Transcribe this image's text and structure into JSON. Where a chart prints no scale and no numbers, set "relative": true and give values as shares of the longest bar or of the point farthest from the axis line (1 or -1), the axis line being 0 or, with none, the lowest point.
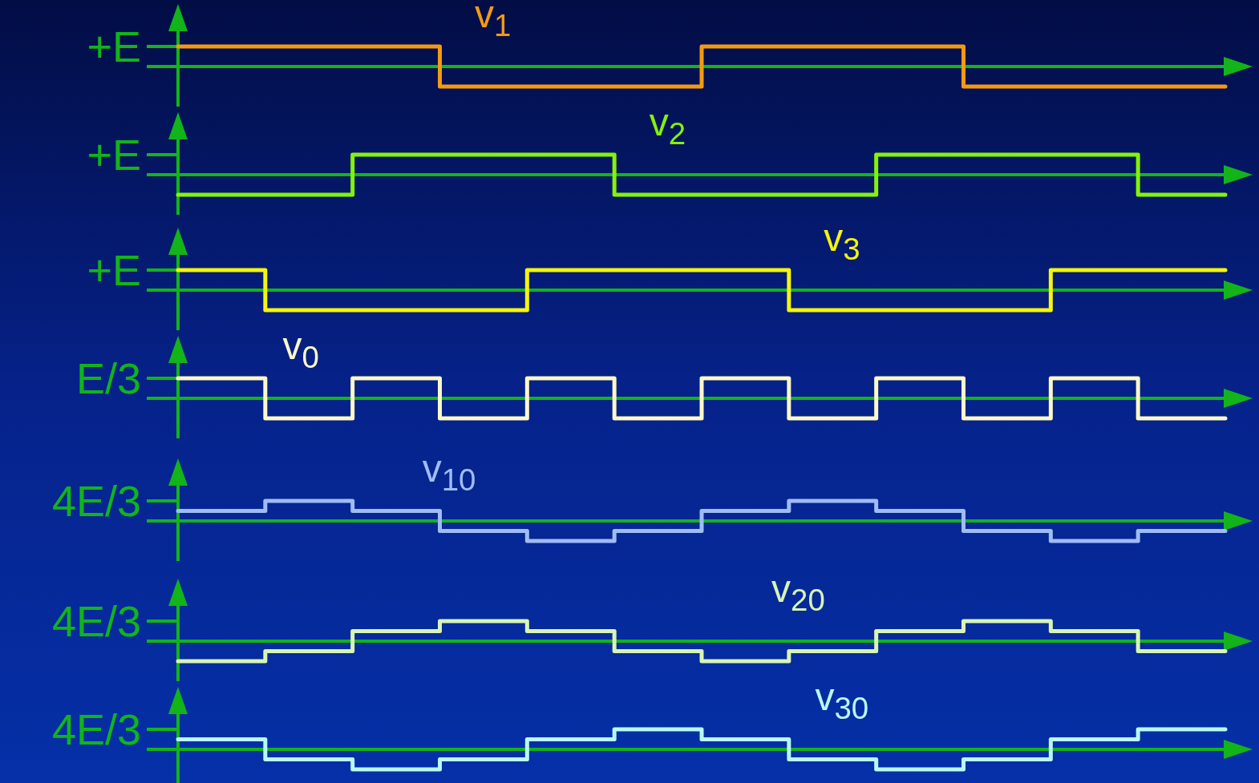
{
  "chart_data": [
    {
      "type": "step",
      "relative": true,
      "annotations": [
        "+E"
      ],
      "ref_lines": [
        {
          "axis": "y",
          "value": 0,
          "color": "#12b41a"
        }
      ],
      "categories": [
        null,
        null,
        null,
        null,
        null,
        null,
        null,
        null,
        null,
        null,
        null,
        null,
        null
      ],
      "series": [
        {
          "name": "v$_{1}$",
          "color": "#f39a12",
          "values": [
            1,
            1,
            1,
            -1,
            -1,
            -1,
            1,
            1,
            1,
            -1,
            -1,
            -1,
            -1
          ]
        }
      ]
    },
    {
      "type": "step",
      "relative": true,
      "annotations": [
        "+E"
      ],
      "ref_lines": [
        {
          "axis": "y",
          "value": 0,
          "color": "#12b41a"
        }
      ],
      "categories": [
        null,
        null,
        null,
        null,
        null,
        null,
        null,
        null,
        null,
        null,
        null,
        null,
        null
      ],
      "series": [
        {
          "name": "v$_{2}$",
          "color": "#84f20a",
          "values": [
            -1,
            -1,
            1,
            1,
            1,
            -1,
            -1,
            -1,
            1,
            1,
            1,
            -1,
            -1
          ]
        }
      ]
    },
    {
      "type": "step",
      "relative": true,
      "annotations": [
        "+E"
      ],
      "ref_lines": [
        {
          "axis": "y",
          "value": 0,
          "color": "#12b41a"
        }
      ],
      "categories": [
        null,
        null,
        null,
        null,
        null,
        null,
        null,
        null,
        null,
        null,
        null,
        null,
        null
      ],
      "series": [
        {
          "name": "v$_{3}$",
          "color": "#f5f50a",
          "values": [
            1,
            -1,
            -1,
            -1,
            1,
            1,
            1,
            -1,
            -1,
            -1,
            1,
            1,
            1
          ]
        }
      ]
    },
    {
      "type": "step",
      "relative": true,
      "annotations": [
        "E/3"
      ],
      "ref_lines": [
        {
          "axis": "y",
          "value": 0,
          "color": "#12b41a"
        }
      ],
      "categories": [
        null,
        null,
        null,
        null,
        null,
        null,
        null,
        null,
        null,
        null,
        null,
        null,
        null
      ],
      "series": [
        {
          "name": "v$_{0}$",
          "color": "#fcf8c8",
          "values": [
            1,
            -1,
            1,
            -1,
            1,
            -1,
            1,
            -1,
            1,
            -1,
            1,
            -1,
            -1
          ]
        }
      ]
    },
    {
      "type": "step",
      "relative": true,
      "annotations": [
        "4E/3"
      ],
      "ref_lines": [
        {
          "axis": "y",
          "value": 0,
          "color": "#12b41a"
        }
      ],
      "categories": [
        null,
        null,
        null,
        null,
        null,
        null,
        null,
        null,
        null,
        null,
        null,
        null,
        null
      ],
      "series": [
        {
          "name": "v$_{10}$",
          "color": "#a0bcf5",
          "values": [
            0.5,
            1,
            0.5,
            -0.5,
            -1,
            -0.5,
            0.5,
            1,
            0.5,
            -0.5,
            -1,
            -0.5,
            -0.5
          ]
        }
      ]
    },
    {
      "type": "step",
      "relative": true,
      "annotations": [
        "4E/3"
      ],
      "ref_lines": [
        {
          "axis": "y",
          "value": 0,
          "color": "#12b41a"
        }
      ],
      "categories": [
        null,
        null,
        null,
        null,
        null,
        null,
        null,
        null,
        null,
        null,
        null,
        null,
        null
      ],
      "series": [
        {
          "name": "v$_{20}$",
          "color": "#d8f5b4",
          "values": [
            -1,
            -0.5,
            0.5,
            1,
            0.5,
            -0.5,
            -1,
            -0.5,
            0.5,
            1,
            0.5,
            -0.5,
            -0.5
          ]
        }
      ]
    },
    {
      "type": "step",
      "relative": true,
      "annotations": [
        "4E/3"
      ],
      "ref_lines": [
        {
          "axis": "y",
          "value": 0,
          "color": "#12b41a"
        }
      ],
      "categories": [
        null,
        null,
        null,
        null,
        null,
        null,
        null,
        null,
        null,
        null,
        null,
        null,
        null
      ],
      "series": [
        {
          "name": "v$_{30}$",
          "color": "#b8f8f5",
          "values": [
            0.5,
            -0.5,
            -1,
            -0.5,
            0.5,
            1,
            0.5,
            -0.5,
            -1,
            -0.5,
            0.5,
            1,
            1
          ]
        }
      ]
    }
  ]
}
